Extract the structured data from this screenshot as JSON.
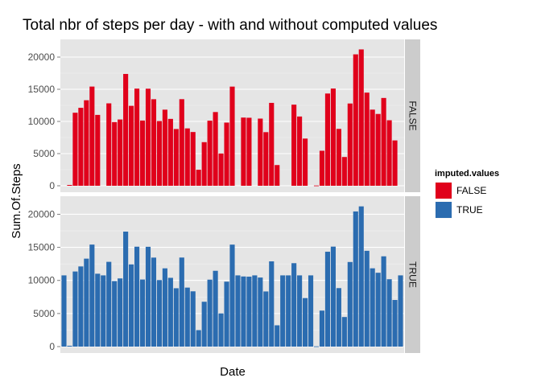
{
  "chart_data": {
    "type": "bar",
    "title": "Total nbr of steps per day - with and without computed values",
    "xlabel": "Date",
    "ylabel": "Sum.Of.Steps",
    "ylim": [
      0,
      22000
    ],
    "y_ticks": [
      0,
      5000,
      10000,
      15000,
      20000
    ],
    "grid": true,
    "legend": {
      "title": "imputed.values",
      "position": "right",
      "entries": [
        {
          "label": "FALSE",
          "color": "#e0001b"
        },
        {
          "label": "TRUE",
          "color": "#2b6cb0"
        }
      ]
    },
    "facets": [
      {
        "strip": "FALSE",
        "color": "#e0001b",
        "values": [
          0,
          126,
          11352,
          12116,
          13294,
          15420,
          11015,
          0,
          12811,
          9900,
          10304,
          17382,
          12426,
          15098,
          10139,
          15084,
          13452,
          10056,
          11829,
          10395,
          8821,
          13460,
          8918,
          8355,
          2492,
          6778,
          10119,
          11458,
          5018,
          9819,
          15414,
          0,
          10600,
          10571,
          0,
          10439,
          8334,
          12883,
          3219,
          0,
          0,
          12608,
          10765,
          7336,
          0,
          41,
          5441,
          14339,
          15110,
          8841,
          4472,
          12787,
          20427,
          21194,
          14478,
          11834,
          11162,
          13646,
          10183,
          7047,
          0
        ]
      },
      {
        "strip": "TRUE",
        "color": "#2b6cb0",
        "values": [
          10766,
          126,
          11352,
          12116,
          13294,
          15420,
          11015,
          10766,
          12811,
          9900,
          10304,
          17382,
          12426,
          15098,
          10139,
          15084,
          13452,
          10056,
          11829,
          10395,
          8821,
          13460,
          8918,
          8355,
          2492,
          6778,
          10119,
          11458,
          5018,
          9819,
          15414,
          10766,
          10600,
          10571,
          10766,
          10439,
          8334,
          12883,
          3219,
          10766,
          10766,
          12608,
          10765,
          7336,
          10766,
          41,
          5441,
          14339,
          15110,
          8841,
          4472,
          12787,
          20427,
          21194,
          14478,
          11834,
          11162,
          13646,
          10183,
          7047,
          10766
        ]
      }
    ]
  }
}
